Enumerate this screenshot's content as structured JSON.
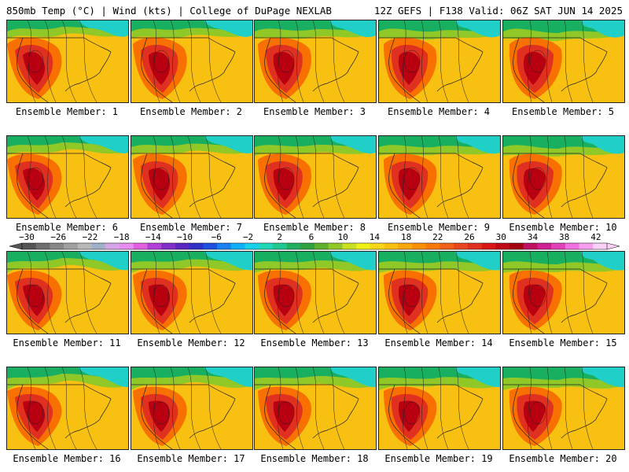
{
  "header": {
    "left": "850mb Temp (°C) | Wind (kts) | College of DuPage NEXLAB",
    "right": "12Z GEFS | F138 Valid: 06Z SAT JUN 14 2025"
  },
  "members": [
    "Ensemble Member: 1",
    "Ensemble Member: 2",
    "Ensemble Member: 3",
    "Ensemble Member: 4",
    "Ensemble Member: 5",
    "Ensemble Member: 6",
    "Ensemble Member: 7",
    "Ensemble Member: 8",
    "Ensemble Member: 9",
    "Ensemble Member: 10",
    "Ensemble Member: 11",
    "Ensemble Member: 12",
    "Ensemble Member: 13",
    "Ensemble Member: 14",
    "Ensemble Member: 15",
    "Ensemble Member: 16",
    "Ensemble Member: 17",
    "Ensemble Member: 18",
    "Ensemble Member: 19",
    "Ensemble Member: 20"
  ],
  "colorbar": {
    "labels": [
      "-30",
      "-26",
      "-22",
      "-18",
      "-14",
      "-10",
      "-6",
      "-2",
      "2",
      "6",
      "10",
      "14",
      "18",
      "22",
      "26",
      "30",
      "34",
      "38",
      "42"
    ],
    "colors": [
      "#555555",
      "#6e6e6e",
      "#888888",
      "#a0a0a0",
      "#b8b8b8",
      "#9fb0c8",
      "#d7a6e8",
      "#e88cf0",
      "#e060e0",
      "#b040d8",
      "#8030c8",
      "#5a28c0",
      "#3030c8",
      "#2050e0",
      "#1880f0",
      "#10b0f8",
      "#18d0e8",
      "#20d8b8",
      "#20c890",
      "#20b060",
      "#30a040",
      "#60b030",
      "#90c828",
      "#c8e020",
      "#f0f018",
      "#f8d818",
      "#f8c010",
      "#f8a808",
      "#f89000",
      "#f87800",
      "#f06018",
      "#e84820",
      "#e03020",
      "#d81818",
      "#c00818",
      "#a00010",
      "#c01060",
      "#d02090",
      "#e040b8",
      "#f070e0",
      "#f8a0f0",
      "#fcd0f8"
    ]
  },
  "map_colors": {
    "cold": "#20d0c8",
    "cool": "#18b060",
    "mild": "#90c828",
    "warm": "#f8c010",
    "hot": "#f87000",
    "very_hot": "#e03020",
    "extreme": "#b80010",
    "line": "#222222"
  }
}
